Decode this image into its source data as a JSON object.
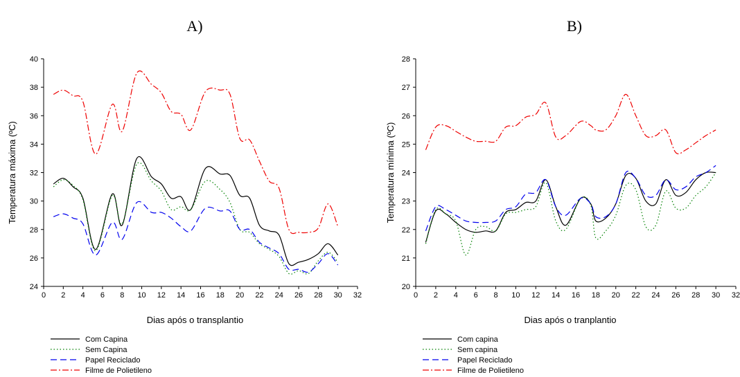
{
  "chart_data": [
    {
      "type": "line",
      "panel_label": "A)",
      "xlabel": "Dias após o transplantio",
      "ylabel": "Temperatura máxima (ºC)",
      "xlim": [
        0,
        32
      ],
      "ylim": [
        24,
        40
      ],
      "xticks": [
        0,
        2,
        4,
        6,
        8,
        10,
        12,
        14,
        16,
        18,
        20,
        22,
        24,
        26,
        28,
        30,
        32
      ],
      "yticks": [
        24,
        26,
        28,
        30,
        32,
        34,
        36,
        38,
        40
      ],
      "legend_position": "bottom-left",
      "series": [
        {
          "name": "Com Capina",
          "color": "#000000",
          "dash": "solid",
          "points": [
            [
              1,
              31.2
            ],
            [
              2,
              31.6
            ],
            [
              3,
              31.0
            ],
            [
              4,
              30.2
            ],
            [
              5.3,
              26.6
            ],
            [
              7,
              30.5
            ],
            [
              8,
              28.3
            ],
            [
              9.5,
              33.0
            ],
            [
              11,
              31.7
            ],
            [
              12,
              31.2
            ],
            [
              13,
              30.2
            ],
            [
              14,
              30.3
            ],
            [
              15,
              29.4
            ],
            [
              16.5,
              32.3
            ],
            [
              18,
              31.9
            ],
            [
              19,
              31.8
            ],
            [
              20,
              30.4
            ],
            [
              21,
              30.2
            ],
            [
              22,
              28.3
            ],
            [
              23,
              27.9
            ],
            [
              24,
              27.6
            ],
            [
              25,
              25.6
            ],
            [
              26,
              25.7
            ],
            [
              27,
              25.9
            ],
            [
              28,
              26.3
            ],
            [
              29,
              27.0
            ],
            [
              30,
              26.2
            ]
          ]
        },
        {
          "name": "Sem Capina",
          "color": "#008000",
          "dash": "dotted",
          "points": [
            [
              1,
              31.0
            ],
            [
              2,
              31.5
            ],
            [
              3,
              31.1
            ],
            [
              4,
              30.1
            ],
            [
              5.3,
              26.5
            ],
            [
              7,
              30.4
            ],
            [
              8,
              28.4
            ],
            [
              9.5,
              32.6
            ],
            [
              11,
              31.4
            ],
            [
              12,
              30.7
            ],
            [
              13,
              29.4
            ],
            [
              14,
              29.6
            ],
            [
              15,
              29.4
            ],
            [
              16.5,
              31.4
            ],
            [
              18,
              30.8
            ],
            [
              19,
              29.9
            ],
            [
              20,
              28.0
            ],
            [
              21,
              27.8
            ],
            [
              22,
              27.0
            ],
            [
              23,
              26.6
            ],
            [
              24,
              26.1
            ],
            [
              25,
              24.9
            ],
            [
              26,
              25.1
            ],
            [
              27,
              24.9
            ],
            [
              28,
              25.8
            ],
            [
              29,
              26.4
            ],
            [
              30,
              25.7
            ]
          ]
        },
        {
          "name": "Papel Reciclado",
          "color": "#0000ee",
          "dash": "dashed",
          "points": [
            [
              1,
              28.9
            ],
            [
              2,
              29.1
            ],
            [
              3,
              28.8
            ],
            [
              4,
              28.4
            ],
            [
              5.3,
              26.2
            ],
            [
              7,
              28.5
            ],
            [
              8,
              27.3
            ],
            [
              9.5,
              29.9
            ],
            [
              11,
              29.2
            ],
            [
              12,
              29.2
            ],
            [
              13,
              28.8
            ],
            [
              14,
              28.2
            ],
            [
              15,
              27.9
            ],
            [
              16.5,
              29.5
            ],
            [
              18,
              29.3
            ],
            [
              19,
              29.3
            ],
            [
              20,
              28.0
            ],
            [
              21,
              28.0
            ],
            [
              22,
              27.1
            ],
            [
              23,
              26.7
            ],
            [
              24,
              26.3
            ],
            [
              25,
              25.2
            ],
            [
              26,
              25.2
            ],
            [
              27,
              25.0
            ],
            [
              28,
              25.6
            ],
            [
              29,
              26.3
            ],
            [
              30,
              25.5
            ]
          ]
        },
        {
          "name": "Filme de Polietileno",
          "color": "#ee0000",
          "dash": "dashdot",
          "points": [
            [
              1,
              37.5
            ],
            [
              2,
              37.8
            ],
            [
              3,
              37.4
            ],
            [
              4,
              37.0
            ],
            [
              5.3,
              33.3
            ],
            [
              7,
              36.8
            ],
            [
              8,
              34.9
            ],
            [
              9.5,
              39.0
            ],
            [
              11,
              38.2
            ],
            [
              12,
              37.6
            ],
            [
              13,
              36.3
            ],
            [
              14,
              36.1
            ],
            [
              15,
              35.0
            ],
            [
              16.5,
              37.7
            ],
            [
              18,
              37.8
            ],
            [
              19,
              37.5
            ],
            [
              20,
              34.4
            ],
            [
              21,
              34.3
            ],
            [
              22,
              32.8
            ],
            [
              23,
              31.4
            ],
            [
              24,
              30.9
            ],
            [
              25,
              28.0
            ],
            [
              26,
              27.8
            ],
            [
              27,
              27.8
            ],
            [
              28,
              28.1
            ],
            [
              29,
              29.8
            ],
            [
              30,
              28.2
            ]
          ]
        }
      ]
    },
    {
      "type": "line",
      "panel_label": "B)",
      "xlabel": "Dias após o tranplantio",
      "ylabel": "Temperatura mínima (ºC)",
      "xlim": [
        0,
        32
      ],
      "ylim": [
        20,
        28
      ],
      "xticks": [
        0,
        2,
        4,
        6,
        8,
        10,
        12,
        14,
        16,
        18,
        20,
        22,
        24,
        26,
        28,
        30,
        32
      ],
      "yticks": [
        20,
        21,
        22,
        23,
        24,
        25,
        26,
        27,
        28
      ],
      "legend_position": "bottom-left",
      "series": [
        {
          "name": "Com capina",
          "color": "#000000",
          "dash": "solid",
          "points": [
            [
              1,
              21.55
            ],
            [
              2,
              22.65
            ],
            [
              3,
              22.55
            ],
            [
              4,
              22.25
            ],
            [
              5,
              22.0
            ],
            [
              6,
              21.9
            ],
            [
              7,
              21.95
            ],
            [
              8,
              21.95
            ],
            [
              9,
              22.6
            ],
            [
              10,
              22.7
            ],
            [
              11,
              22.95
            ],
            [
              12,
              23.0
            ],
            [
              13,
              23.75
            ],
            [
              14,
              22.8
            ],
            [
              15,
              22.15
            ],
            [
              16.5,
              23.1
            ],
            [
              17.5,
              22.9
            ],
            [
              18,
              22.3
            ],
            [
              19,
              22.4
            ],
            [
              20,
              22.9
            ],
            [
              21,
              23.9
            ],
            [
              22,
              23.8
            ],
            [
              23,
              23.0
            ],
            [
              24,
              22.9
            ],
            [
              25,
              23.75
            ],
            [
              26,
              23.2
            ],
            [
              27,
              23.3
            ],
            [
              28,
              23.75
            ],
            [
              29,
              24.0
            ],
            [
              30,
              24.0
            ]
          ]
        },
        {
          "name": "Sem capina",
          "color": "#008000",
          "dash": "dotted",
          "points": [
            [
              1,
              21.5
            ],
            [
              2,
              22.7
            ],
            [
              3,
              22.55
            ],
            [
              4,
              22.3
            ],
            [
              5,
              21.1
            ],
            [
              6,
              22.0
            ],
            [
              7,
              22.1
            ],
            [
              8,
              21.95
            ],
            [
              9,
              22.55
            ],
            [
              10,
              22.6
            ],
            [
              11,
              22.7
            ],
            [
              12,
              22.8
            ],
            [
              13,
              23.65
            ],
            [
              14,
              22.3
            ],
            [
              15,
              22.0
            ],
            [
              16.5,
              23.1
            ],
            [
              17.5,
              22.85
            ],
            [
              18,
              21.7
            ],
            [
              19,
              21.95
            ],
            [
              20,
              22.5
            ],
            [
              21,
              23.55
            ],
            [
              22,
              23.4
            ],
            [
              23,
              22.1
            ],
            [
              24,
              22.15
            ],
            [
              25,
              23.35
            ],
            [
              26,
              22.75
            ],
            [
              27,
              22.75
            ],
            [
              28,
              23.2
            ],
            [
              29,
              23.5
            ],
            [
              30,
              24.0
            ]
          ]
        },
        {
          "name": "Papel Reciclado",
          "color": "#0000ee",
          "dash": "dashed",
          "points": [
            [
              1,
              21.95
            ],
            [
              2,
              22.8
            ],
            [
              3,
              22.7
            ],
            [
              4,
              22.5
            ],
            [
              5,
              22.3
            ],
            [
              6,
              22.25
            ],
            [
              7,
              22.25
            ],
            [
              8,
              22.3
            ],
            [
              9,
              22.7
            ],
            [
              10,
              22.8
            ],
            [
              11,
              23.25
            ],
            [
              12,
              23.3
            ],
            [
              13,
              23.75
            ],
            [
              14,
              22.8
            ],
            [
              15,
              22.5
            ],
            [
              16.5,
              23.1
            ],
            [
              17.5,
              22.9
            ],
            [
              18,
              22.45
            ],
            [
              19,
              22.45
            ],
            [
              20,
              22.9
            ],
            [
              21,
              24.0
            ],
            [
              22,
              23.8
            ],
            [
              23,
              23.2
            ],
            [
              24,
              23.2
            ],
            [
              25,
              23.75
            ],
            [
              26,
              23.4
            ],
            [
              27,
              23.5
            ],
            [
              28,
              23.85
            ],
            [
              29,
              24.0
            ],
            [
              30,
              24.25
            ]
          ]
        },
        {
          "name": "Filme de Polietileno",
          "color": "#ee0000",
          "dash": "dashdot",
          "points": [
            [
              1,
              24.8
            ],
            [
              2,
              25.6
            ],
            [
              3,
              25.65
            ],
            [
              4,
              25.45
            ],
            [
              5,
              25.25
            ],
            [
              6,
              25.1
            ],
            [
              7,
              25.1
            ],
            [
              8,
              25.1
            ],
            [
              9,
              25.6
            ],
            [
              10,
              25.65
            ],
            [
              11,
              25.95
            ],
            [
              12,
              26.05
            ],
            [
              13,
              26.45
            ],
            [
              14,
              25.25
            ],
            [
              15,
              25.3
            ],
            [
              16.5,
              25.8
            ],
            [
              17.5,
              25.65
            ],
            [
              18,
              25.5
            ],
            [
              19,
              25.5
            ],
            [
              20,
              26.0
            ],
            [
              21,
              26.75
            ],
            [
              22,
              26.0
            ],
            [
              23,
              25.3
            ],
            [
              24,
              25.3
            ],
            [
              25,
              25.5
            ],
            [
              26,
              24.7
            ],
            [
              27,
              24.8
            ],
            [
              28,
              25.05
            ],
            [
              29,
              25.3
            ],
            [
              30,
              25.5
            ]
          ]
        }
      ]
    }
  ]
}
